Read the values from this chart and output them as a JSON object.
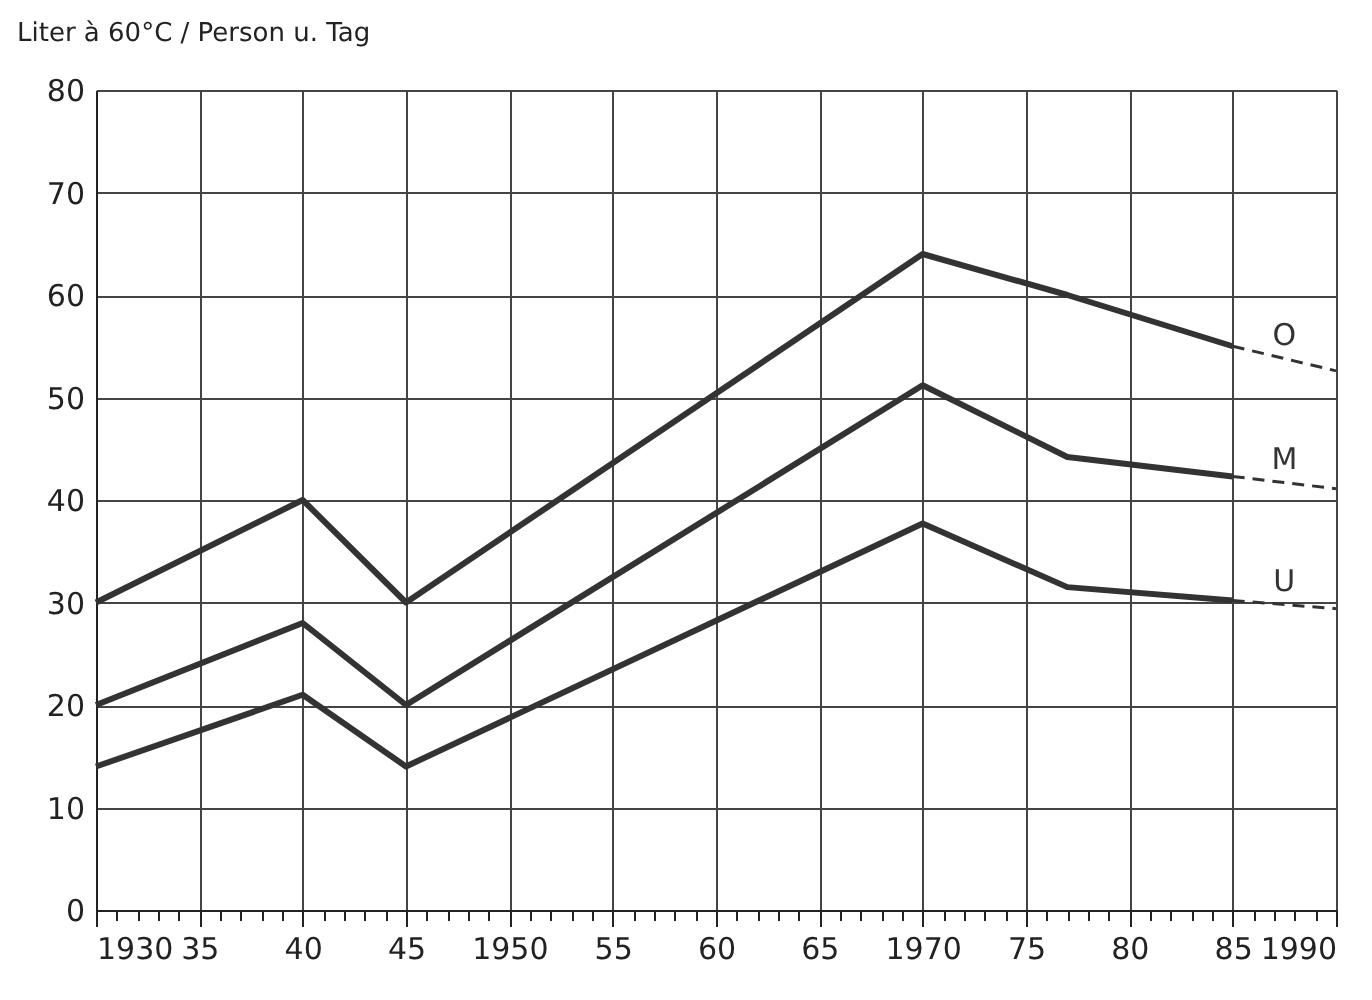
{
  "chart_data": {
    "type": "line",
    "ylabel": "Liter à 60°C / Person u. Tag",
    "xlim": [
      1930,
      1990
    ],
    "ylim": [
      0,
      80
    ],
    "xticks": [
      {
        "value": 1930,
        "label": "1930"
      },
      {
        "value": 1931,
        "label": null
      },
      {
        "value": 1932,
        "label": null
      },
      {
        "value": 1933,
        "label": null
      },
      {
        "value": 1934,
        "label": null
      },
      {
        "value": 1935,
        "label": "35"
      },
      {
        "value": 1936,
        "label": null
      },
      {
        "value": 1937,
        "label": null
      },
      {
        "value": 1938,
        "label": null
      },
      {
        "value": 1939,
        "label": null
      },
      {
        "value": 1940,
        "label": "40"
      },
      {
        "value": 1941,
        "label": null
      },
      {
        "value": 1942,
        "label": null
      },
      {
        "value": 1943,
        "label": null
      },
      {
        "value": 1944,
        "label": null
      },
      {
        "value": 1945,
        "label": "45"
      },
      {
        "value": 1946,
        "label": null
      },
      {
        "value": 1947,
        "label": null
      },
      {
        "value": 1948,
        "label": null
      },
      {
        "value": 1949,
        "label": null
      },
      {
        "value": 1950,
        "label": "1950"
      },
      {
        "value": 1951,
        "label": null
      },
      {
        "value": 1952,
        "label": null
      },
      {
        "value": 1953,
        "label": null
      },
      {
        "value": 1954,
        "label": null
      },
      {
        "value": 1955,
        "label": "55"
      },
      {
        "value": 1956,
        "label": null
      },
      {
        "value": 1957,
        "label": null
      },
      {
        "value": 1958,
        "label": null
      },
      {
        "value": 1959,
        "label": null
      },
      {
        "value": 1960,
        "label": "60"
      },
      {
        "value": 1961,
        "label": null
      },
      {
        "value": 1962,
        "label": null
      },
      {
        "value": 1963,
        "label": null
      },
      {
        "value": 1964,
        "label": null
      },
      {
        "value": 1965,
        "label": "65"
      },
      {
        "value": 1966,
        "label": null
      },
      {
        "value": 1967,
        "label": null
      },
      {
        "value": 1968,
        "label": null
      },
      {
        "value": 1969,
        "label": null
      },
      {
        "value": 1970,
        "label": "1970"
      },
      {
        "value": 1971,
        "label": null
      },
      {
        "value": 1972,
        "label": null
      },
      {
        "value": 1973,
        "label": null
      },
      {
        "value": 1974,
        "label": null
      },
      {
        "value": 1975,
        "label": "75"
      },
      {
        "value": 1976,
        "label": null
      },
      {
        "value": 1977,
        "label": null
      },
      {
        "value": 1978,
        "label": null
      },
      {
        "value": 1979,
        "label": null
      },
      {
        "value": 1980,
        "label": "80"
      },
      {
        "value": 1981,
        "label": null
      },
      {
        "value": 1982,
        "label": null
      },
      {
        "value": 1983,
        "label": null
      },
      {
        "value": 1984,
        "label": null
      },
      {
        "value": 1985,
        "label": "85"
      },
      {
        "value": 1986,
        "label": null
      },
      {
        "value": 1987,
        "label": null
      },
      {
        "value": 1988,
        "label": null
      },
      {
        "value": 1989,
        "label": null
      },
      {
        "value": 1990,
        "label": "1990"
      }
    ],
    "yticks": [
      0,
      10,
      20,
      30,
      40,
      50,
      60,
      70,
      80
    ],
    "grid": true,
    "marker": "none",
    "legend": false,
    "series": [
      {
        "color": "#333333",
        "line_style": "solid",
        "x": [
          1930,
          1940,
          1945,
          1970,
          1977,
          1985
        ],
        "values": [
          30,
          40,
          30,
          64,
          60,
          55
        ]
      },
      {
        "name": "O",
        "color": "#333333",
        "line_style": "dashed",
        "x": [
          1985,
          1990
        ],
        "values": [
          55,
          52.6
        ]
      },
      {
        "color": "#333333",
        "line_style": "solid",
        "x": [
          1930,
          1940,
          1945,
          1970,
          1977,
          1985
        ],
        "values": [
          20,
          28,
          20,
          51.2,
          44.2,
          42.3
        ]
      },
      {
        "name": "M",
        "color": "#333333",
        "line_style": "dashed",
        "x": [
          1985,
          1990
        ],
        "values": [
          42.3,
          41.1
        ]
      },
      {
        "color": "#333333",
        "line_style": "solid",
        "x": [
          1930,
          1940,
          1945,
          1970,
          1977,
          1985
        ],
        "values": [
          14,
          21,
          14,
          37.7,
          31.5,
          30.2
        ]
      },
      {
        "name": "U",
        "color": "#333333",
        "line_style": "dashed",
        "x": [
          1985,
          1990
        ],
        "values": [
          30.2,
          29.4
        ]
      }
    ]
  }
}
